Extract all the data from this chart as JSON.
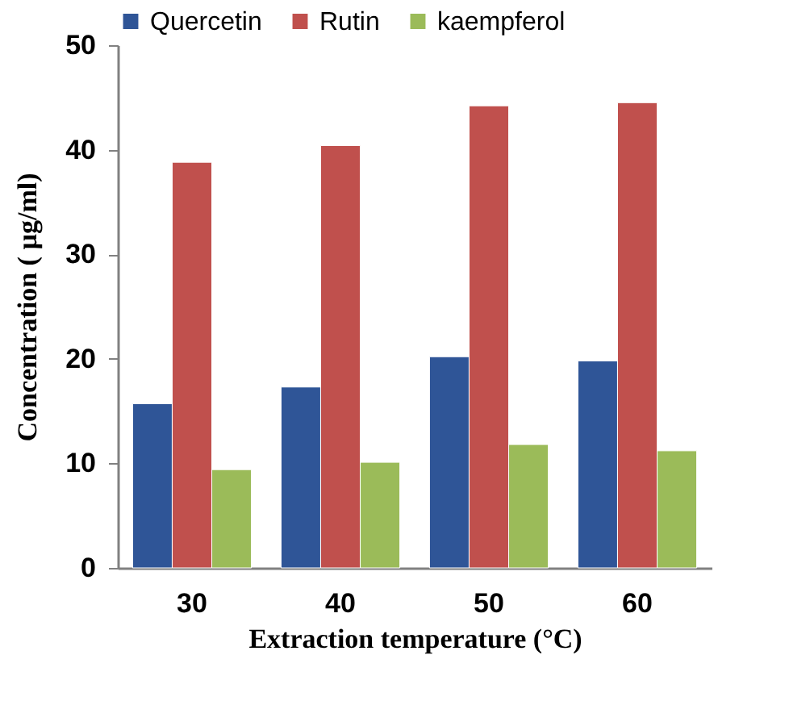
{
  "chart_data": {
    "type": "bar",
    "xlabel": "Extraction temperature (°C)",
    "ylabel": "Concentration ( µg/ml)",
    "categories": [
      "30",
      "40",
      "50",
      "60"
    ],
    "series": [
      {
        "name": "Quercetin",
        "color": "#2f5597",
        "values": [
          15.7,
          17.3,
          20.2,
          19.8
        ]
      },
      {
        "name": "Rutin",
        "color": "#c0504d",
        "values": [
          38.8,
          40.4,
          44.2,
          44.5
        ]
      },
      {
        "name": "kaempferol",
        "color": "#9bbb59",
        "values": [
          9.4,
          10.1,
          11.8,
          11.2
        ]
      }
    ],
    "ylim": [
      0,
      50
    ],
    "yticks": [
      0,
      10,
      20,
      30,
      40,
      50
    ],
    "grid": false,
    "legend": "top"
  }
}
